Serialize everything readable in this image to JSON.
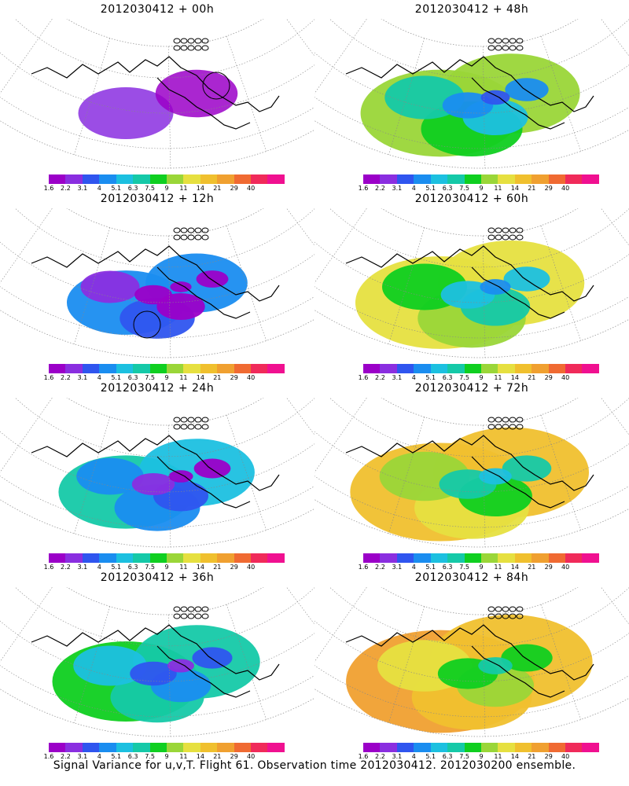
{
  "panels": [
    {
      "id": "p00",
      "title": "2012030412 + 00h",
      "level": 0.0,
      "circle": true
    },
    {
      "id": "p12",
      "title": "2012030412 + 12h",
      "level": 0.22,
      "circle": true
    },
    {
      "id": "p24",
      "title": "2012030412 + 24h",
      "level": 0.38,
      "circle": false
    },
    {
      "id": "p36",
      "title": "2012030412 + 36h",
      "level": 0.5,
      "circle": false
    },
    {
      "id": "p48",
      "title": "2012030412 + 48h",
      "level": 0.62,
      "circle": false
    },
    {
      "id": "p60",
      "title": "2012030412 + 60h",
      "level": 0.72,
      "circle": false
    },
    {
      "id": "p72",
      "title": "2012030412 + 72h",
      "level": 0.82,
      "circle": false
    },
    {
      "id": "p84",
      "title": "2012030412 + 84h",
      "level": 0.9,
      "circle": false
    }
  ],
  "colorbar": {
    "labels": [
      "1.6",
      "2.2",
      "3.1",
      "4",
      "5.1",
      "6.3",
      "7.5",
      "9",
      "11",
      "14",
      "21",
      "29",
      "40"
    ],
    "colors": [
      "#9b00c8",
      "#8a2ee0",
      "#2f55ef",
      "#1a8df0",
      "#1cc0e0",
      "#15c9a8",
      "#0fcf20",
      "#9ad638",
      "#e6e040",
      "#f0c02e",
      "#f0a030",
      "#f06a32",
      "#f02a5a",
      "#f01090"
    ]
  },
  "caption": "Signal Variance for u,v,T. Flight 61. Observation time 2012030412. 2012030200 ensemble."
}
